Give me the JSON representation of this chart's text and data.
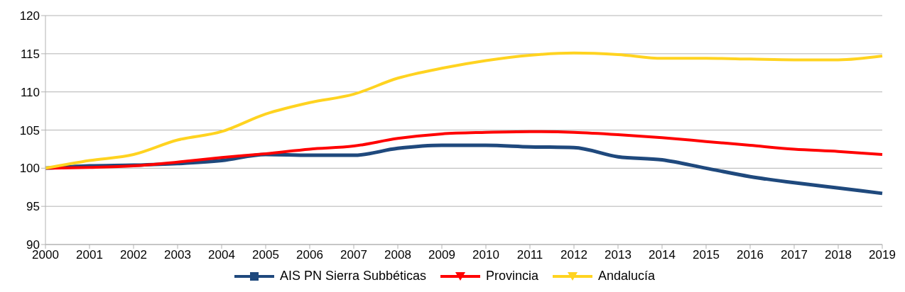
{
  "chart_data": {
    "type": "line",
    "categories": [
      "2000",
      "2001",
      "2002",
      "2003",
      "2004",
      "2005",
      "2006",
      "2007",
      "2008",
      "2009",
      "2010",
      "2011",
      "2012",
      "2013",
      "2014",
      "2015",
      "2016",
      "2017",
      "2018",
      "2019"
    ],
    "series": [
      {
        "name": "AIS PN Sierra Subbéticas",
        "color": "#1f497d",
        "values": [
          100,
          100.3,
          100.4,
          100.6,
          101.0,
          101.8,
          101.7,
          101.7,
          102.6,
          103.0,
          103.0,
          102.8,
          102.7,
          101.5,
          101.1,
          100.0,
          98.9,
          98.1,
          97.4,
          96.7
        ]
      },
      {
        "name": "Provincia",
        "color": "#ff0000",
        "values": [
          100,
          100.1,
          100.3,
          100.8,
          101.4,
          101.9,
          102.5,
          102.9,
          103.9,
          104.5,
          104.7,
          104.8,
          104.7,
          104.4,
          104.0,
          103.5,
          103.0,
          102.5,
          102.2,
          101.8
        ]
      },
      {
        "name": "Andalucía",
        "color": "#ffd320",
        "values": [
          100,
          101.0,
          101.8,
          103.7,
          104.8,
          107.1,
          108.6,
          109.7,
          111.8,
          113.1,
          114.1,
          114.8,
          115.1,
          114.9,
          114.4,
          114.4,
          114.3,
          114.2,
          114.2,
          114.7
        ]
      }
    ],
    "ylim": [
      90,
      120
    ],
    "yticks": [
      90,
      95,
      100,
      105,
      110,
      115,
      120
    ],
    "grid": "y",
    "legend": "bottom",
    "marker": "none",
    "line_style": "solid"
  }
}
